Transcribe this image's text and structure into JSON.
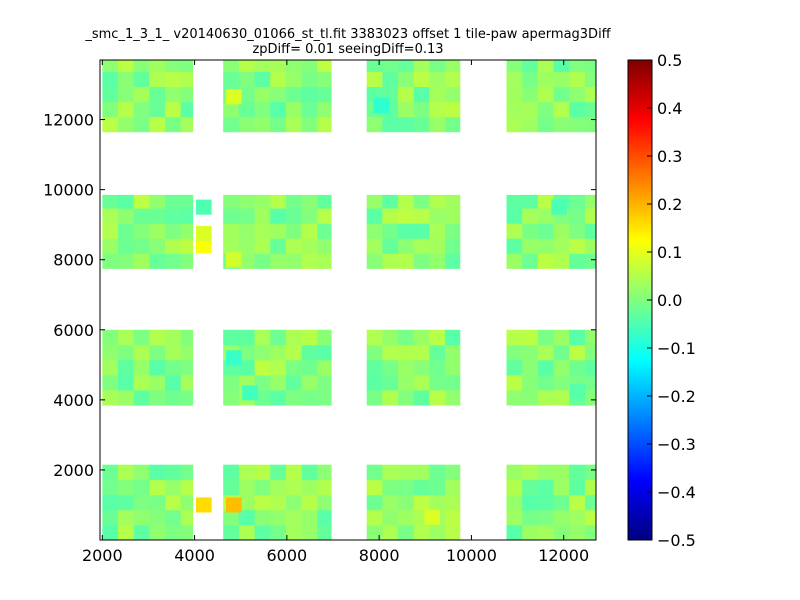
{
  "chart_data": {
    "type": "heatmap",
    "title": "_smc_1_3_1_ v20140630_01066_st_tl.fit 3383023 offset 1 tile-paw apermag3Diff",
    "subtitle": "zpDiff= 0.01 seeingDiff=0.13",
    "xlabel": "",
    "ylabel": "",
    "xlim": [
      1950,
      12700
    ],
    "ylim": [
      0,
      13700
    ],
    "x_ticks": [
      2000,
      4000,
      6000,
      8000,
      10000,
      12000
    ],
    "y_ticks": [
      2000,
      4000,
      6000,
      8000,
      10000,
      12000
    ],
    "x_tick_labels": [
      "2000",
      "4000",
      "6000",
      "8000",
      "10000",
      "12000"
    ],
    "y_tick_labels": [
      "2000",
      "4000",
      "6000",
      "8000",
      "10000",
      "12000"
    ],
    "colorbar": {
      "range": [
        -0.5,
        0.5
      ],
      "ticks": [
        0.5,
        0.4,
        0.3,
        0.2,
        0.1,
        0.0,
        -0.1,
        -0.2,
        -0.3,
        -0.4,
        -0.5
      ],
      "tick_labels": [
        "0.5",
        "0.4",
        "0.3",
        "0.2",
        "0.1",
        "0.0",
        "−0.1",
        "−0.2",
        "−0.3",
        "−0.4",
        "−0.5"
      ],
      "colormap": "jet"
    },
    "cell_size": [
      340,
      430
    ],
    "grid": false,
    "blocks": [
      {
        "x0": 2000,
        "x1": 3960,
        "y0": 0,
        "y1": 2150
      },
      {
        "x0": 4620,
        "x1": 6960,
        "y0": 0,
        "y1": 2150
      },
      {
        "x0": 7730,
        "x1": 9750,
        "y0": 0,
        "y1": 2150
      },
      {
        "x0": 10760,
        "x1": 12700,
        "y0": 0,
        "y1": 2150
      },
      {
        "x0": 2000,
        "x1": 3960,
        "y0": 3850,
        "y1": 6000
      },
      {
        "x0": 4620,
        "x1": 6960,
        "y0": 3850,
        "y1": 6000
      },
      {
        "x0": 7730,
        "x1": 9750,
        "y0": 3850,
        "y1": 6000
      },
      {
        "x0": 10760,
        "x1": 12700,
        "y0": 3850,
        "y1": 6000
      },
      {
        "x0": 2000,
        "x1": 3960,
        "y0": 7750,
        "y1": 9850
      },
      {
        "x0": 4620,
        "x1": 6960,
        "y0": 7750,
        "y1": 9850
      },
      {
        "x0": 7730,
        "x1": 9750,
        "y0": 7750,
        "y1": 9850
      },
      {
        "x0": 10760,
        "x1": 12700,
        "y0": 7750,
        "y1": 9850
      },
      {
        "x0": 2000,
        "x1": 3960,
        "y0": 11650,
        "y1": 13700
      },
      {
        "x0": 4620,
        "x1": 6960,
        "y0": 11650,
        "y1": 13700
      },
      {
        "x0": 7730,
        "x1": 9750,
        "y0": 11650,
        "y1": 13700
      },
      {
        "x0": 10760,
        "x1": 12700,
        "y0": 11650,
        "y1": 13700
      }
    ],
    "cells": [
      {
        "x": 4200,
        "y": 1000,
        "value": 0.16
      },
      {
        "x": 4850,
        "y": 1000,
        "value": 0.19
      },
      {
        "x": 9150,
        "y": 650,
        "value": 0.09
      },
      {
        "x": 4200,
        "y": 8400,
        "value": 0.12
      },
      {
        "x": 4200,
        "y": 8750,
        "value": 0.09
      },
      {
        "x": 4200,
        "y": 9500,
        "value": -0.05
      },
      {
        "x": 4850,
        "y": 8000,
        "value": 0.08
      },
      {
        "x": 8050,
        "y": 12400,
        "value": -0.08
      },
      {
        "x": 4850,
        "y": 12650,
        "value": 0.09
      },
      {
        "x": 4850,
        "y": 5200,
        "value": -0.07
      },
      {
        "x": 5200,
        "y": 4200,
        "value": -0.06
      },
      {
        "x": 12300,
        "y": 4250,
        "value": -0.04
      },
      {
        "x": 11900,
        "y": 9500,
        "value": -0.05
      }
    ]
  }
}
